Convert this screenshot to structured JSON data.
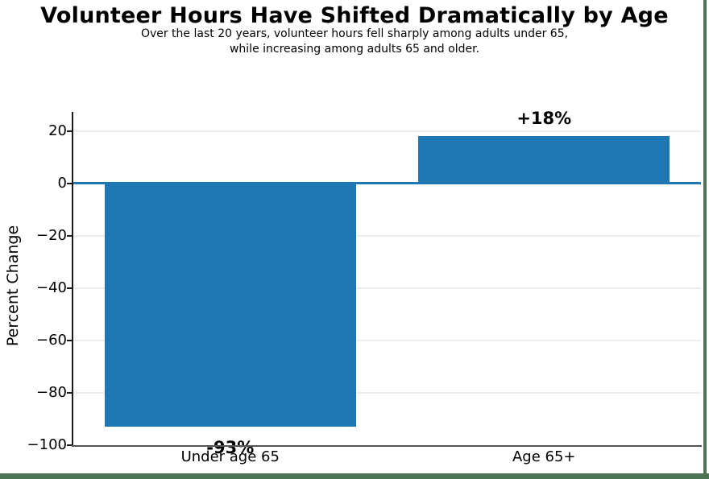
{
  "header": {
    "title": "Volunteer Hours Have Shifted Dramatically by Age",
    "subtitle_line1": "Over the last 20 years, volunteer hours fell sharply among adults under 65,",
    "subtitle_line2": "while increasing among adults 65 and older."
  },
  "chart_data": {
    "type": "bar",
    "title": "Volunteer Hours Have Shifted Dramatically by Age",
    "subtitle": "Over the last 20 years, volunteer hours fell sharply among adults under 65, while increasing among adults 65 and older.",
    "categories": [
      "Under age 65",
      "Age 65+"
    ],
    "values": [
      -93,
      18
    ],
    "bar_labels": [
      "-93%",
      "+18%"
    ],
    "xlabel": "",
    "ylabel": "Percent Change",
    "ylim": [
      -100,
      27
    ],
    "yticks": [
      20,
      0,
      -20,
      -40,
      -60,
      -80,
      -100
    ],
    "ytick_labels": [
      "20",
      "0",
      "−20",
      "−40",
      "−60",
      "−80",
      "−100"
    ],
    "grid": true,
    "legend": false,
    "bar_color": "#1f77b4",
    "zero_line_color": "#1f77b4",
    "gridline_color": "#ececec",
    "background_color": "#ffffff",
    "edge_border_color": "#4d7354"
  }
}
